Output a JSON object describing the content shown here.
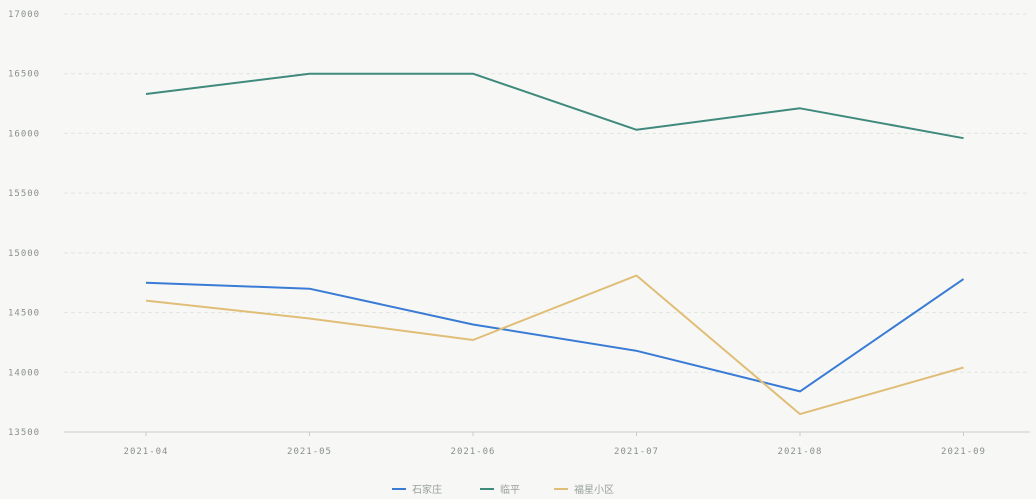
{
  "chart_data": {
    "type": "line",
    "categories": [
      "2021-04",
      "2021-05",
      "2021-06",
      "2021-07",
      "2021-08",
      "2021-09"
    ],
    "ylim": [
      13500,
      17000
    ],
    "yticks": [
      13500,
      14000,
      14500,
      15000,
      15500,
      16000,
      16500,
      17000
    ],
    "grid": true,
    "legend_position": "bottom",
    "series": [
      {
        "name": "石家庄",
        "color": "#3a7bd5",
        "values": [
          14750,
          14700,
          14400,
          14180,
          13840,
          14780
        ]
      },
      {
        "name": "临平",
        "color": "#3f8a7c",
        "values": [
          16330,
          16500,
          16500,
          16030,
          16210,
          15960
        ]
      },
      {
        "name": "福星小区",
        "color": "#e0be78",
        "values": [
          14600,
          14450,
          14270,
          14810,
          13650,
          14040
        ]
      }
    ]
  }
}
